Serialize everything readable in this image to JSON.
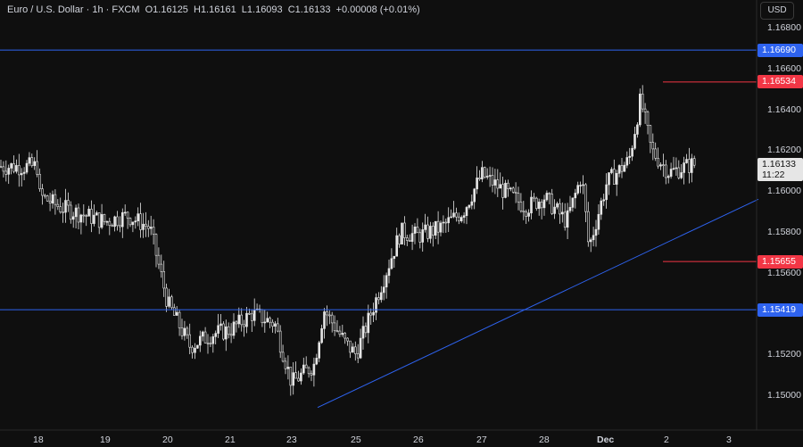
{
  "legend": {
    "symbol": "Euro / U.S. Dollar · 1h · FXCM",
    "open": "O1.16125",
    "high": "H1.16161",
    "low": "L1.16093",
    "close": "C1.16133",
    "change": "+0.00008 (+0.01%)"
  },
  "currency_button": "USD",
  "last_price": {
    "price": "1.16133",
    "countdown": "11:22"
  },
  "colors": {
    "background": "#0f0f0f",
    "candle": "#e6e6e6",
    "blue_line": "#2e63f0",
    "red_line": "#f23645",
    "grid_text": "#d1d4dc"
  },
  "chart_data": {
    "type": "candlestick",
    "title": "Euro / U.S. Dollar · 1h · FXCM",
    "x_ticks": [
      "18",
      "19",
      "20",
      "21",
      "23",
      "25",
      "26",
      "27",
      "28",
      "Dec",
      "2",
      "3"
    ],
    "y_ticks": [
      "1.16800",
      "1.16600",
      "1.16400",
      "1.16200",
      "1.16000",
      "1.15800",
      "1.15600",
      "1.15200",
      "1.15000"
    ],
    "ylim": [
      1.1486,
      1.17
    ],
    "horizontal_levels": [
      {
        "label": "1.16690",
        "value": 1.1669,
        "color": "blue",
        "style": "full-width line"
      },
      {
        "label": "1.16534",
        "value": 1.16534,
        "color": "red",
        "style": "short line"
      },
      {
        "label": "1.15655",
        "value": 1.15655,
        "color": "red",
        "style": "short line"
      },
      {
        "label": "1.15419",
        "value": 1.15419,
        "color": "blue",
        "style": "full-width line"
      }
    ],
    "trendline": {
      "from": {
        "x": "Nov 21 (late)",
        "y": 1.1494
      },
      "to": {
        "x": "Dec 3",
        "y": 1.1596
      }
    },
    "price_path": [
      [
        "Nov 17 (end)",
        1.1612
      ],
      [
        "Nov 18",
        1.1598
      ],
      [
        "Nov 18 (mid)",
        1.1592
      ],
      [
        "Nov 19",
        1.1585
      ],
      [
        "Nov 19 (mid)",
        1.1588
      ],
      [
        "Nov 19 (late)",
        1.1582
      ],
      [
        "Nov 20",
        1.1545
      ],
      [
        "Nov 20 (mid)",
        1.1524
      ],
      [
        "Nov 20 (late)",
        1.153
      ],
      [
        "Nov 21",
        1.1532
      ],
      [
        "Nov 21 (mid)",
        1.154
      ],
      [
        "Nov 21 (late)",
        1.1535
      ],
      [
        "Nov 23",
        1.1506
      ],
      [
        "Nov 23 (mid)",
        1.1515
      ],
      [
        "Nov 24",
        1.1542
      ],
      [
        "Nov 24 (mid)",
        1.1525
      ],
      [
        "Nov 25",
        1.152
      ],
      [
        "Nov 25 (mid)",
        1.155
      ],
      [
        "Nov 25 (late)",
        1.158
      ],
      [
        "Nov 26",
        1.1578
      ],
      [
        "Nov 26 (mid)",
        1.1582
      ],
      [
        "Nov 26 (late)",
        1.159
      ],
      [
        "Nov 27",
        1.1608
      ],
      [
        "Nov 27 (mid)",
        1.16
      ],
      [
        "Nov 27 (late)",
        1.1592
      ],
      [
        "Nov 28",
        1.1597
      ],
      [
        "Nov 28 (mid)",
        1.1585
      ],
      [
        "Nov 28 (late)",
        1.1572
      ],
      [
        "Nov 29",
        1.1608
      ],
      [
        "Dec 1",
        1.1604
      ],
      [
        "Dec 1 (mid)",
        1.1615
      ],
      [
        "Dec 1 (peak)",
        1.1645
      ],
      [
        "Dec 1 (late)",
        1.162
      ],
      [
        "Dec 2",
        1.1609
      ],
      [
        "Dec 2 (mid)",
        1.1613
      ]
    ]
  }
}
